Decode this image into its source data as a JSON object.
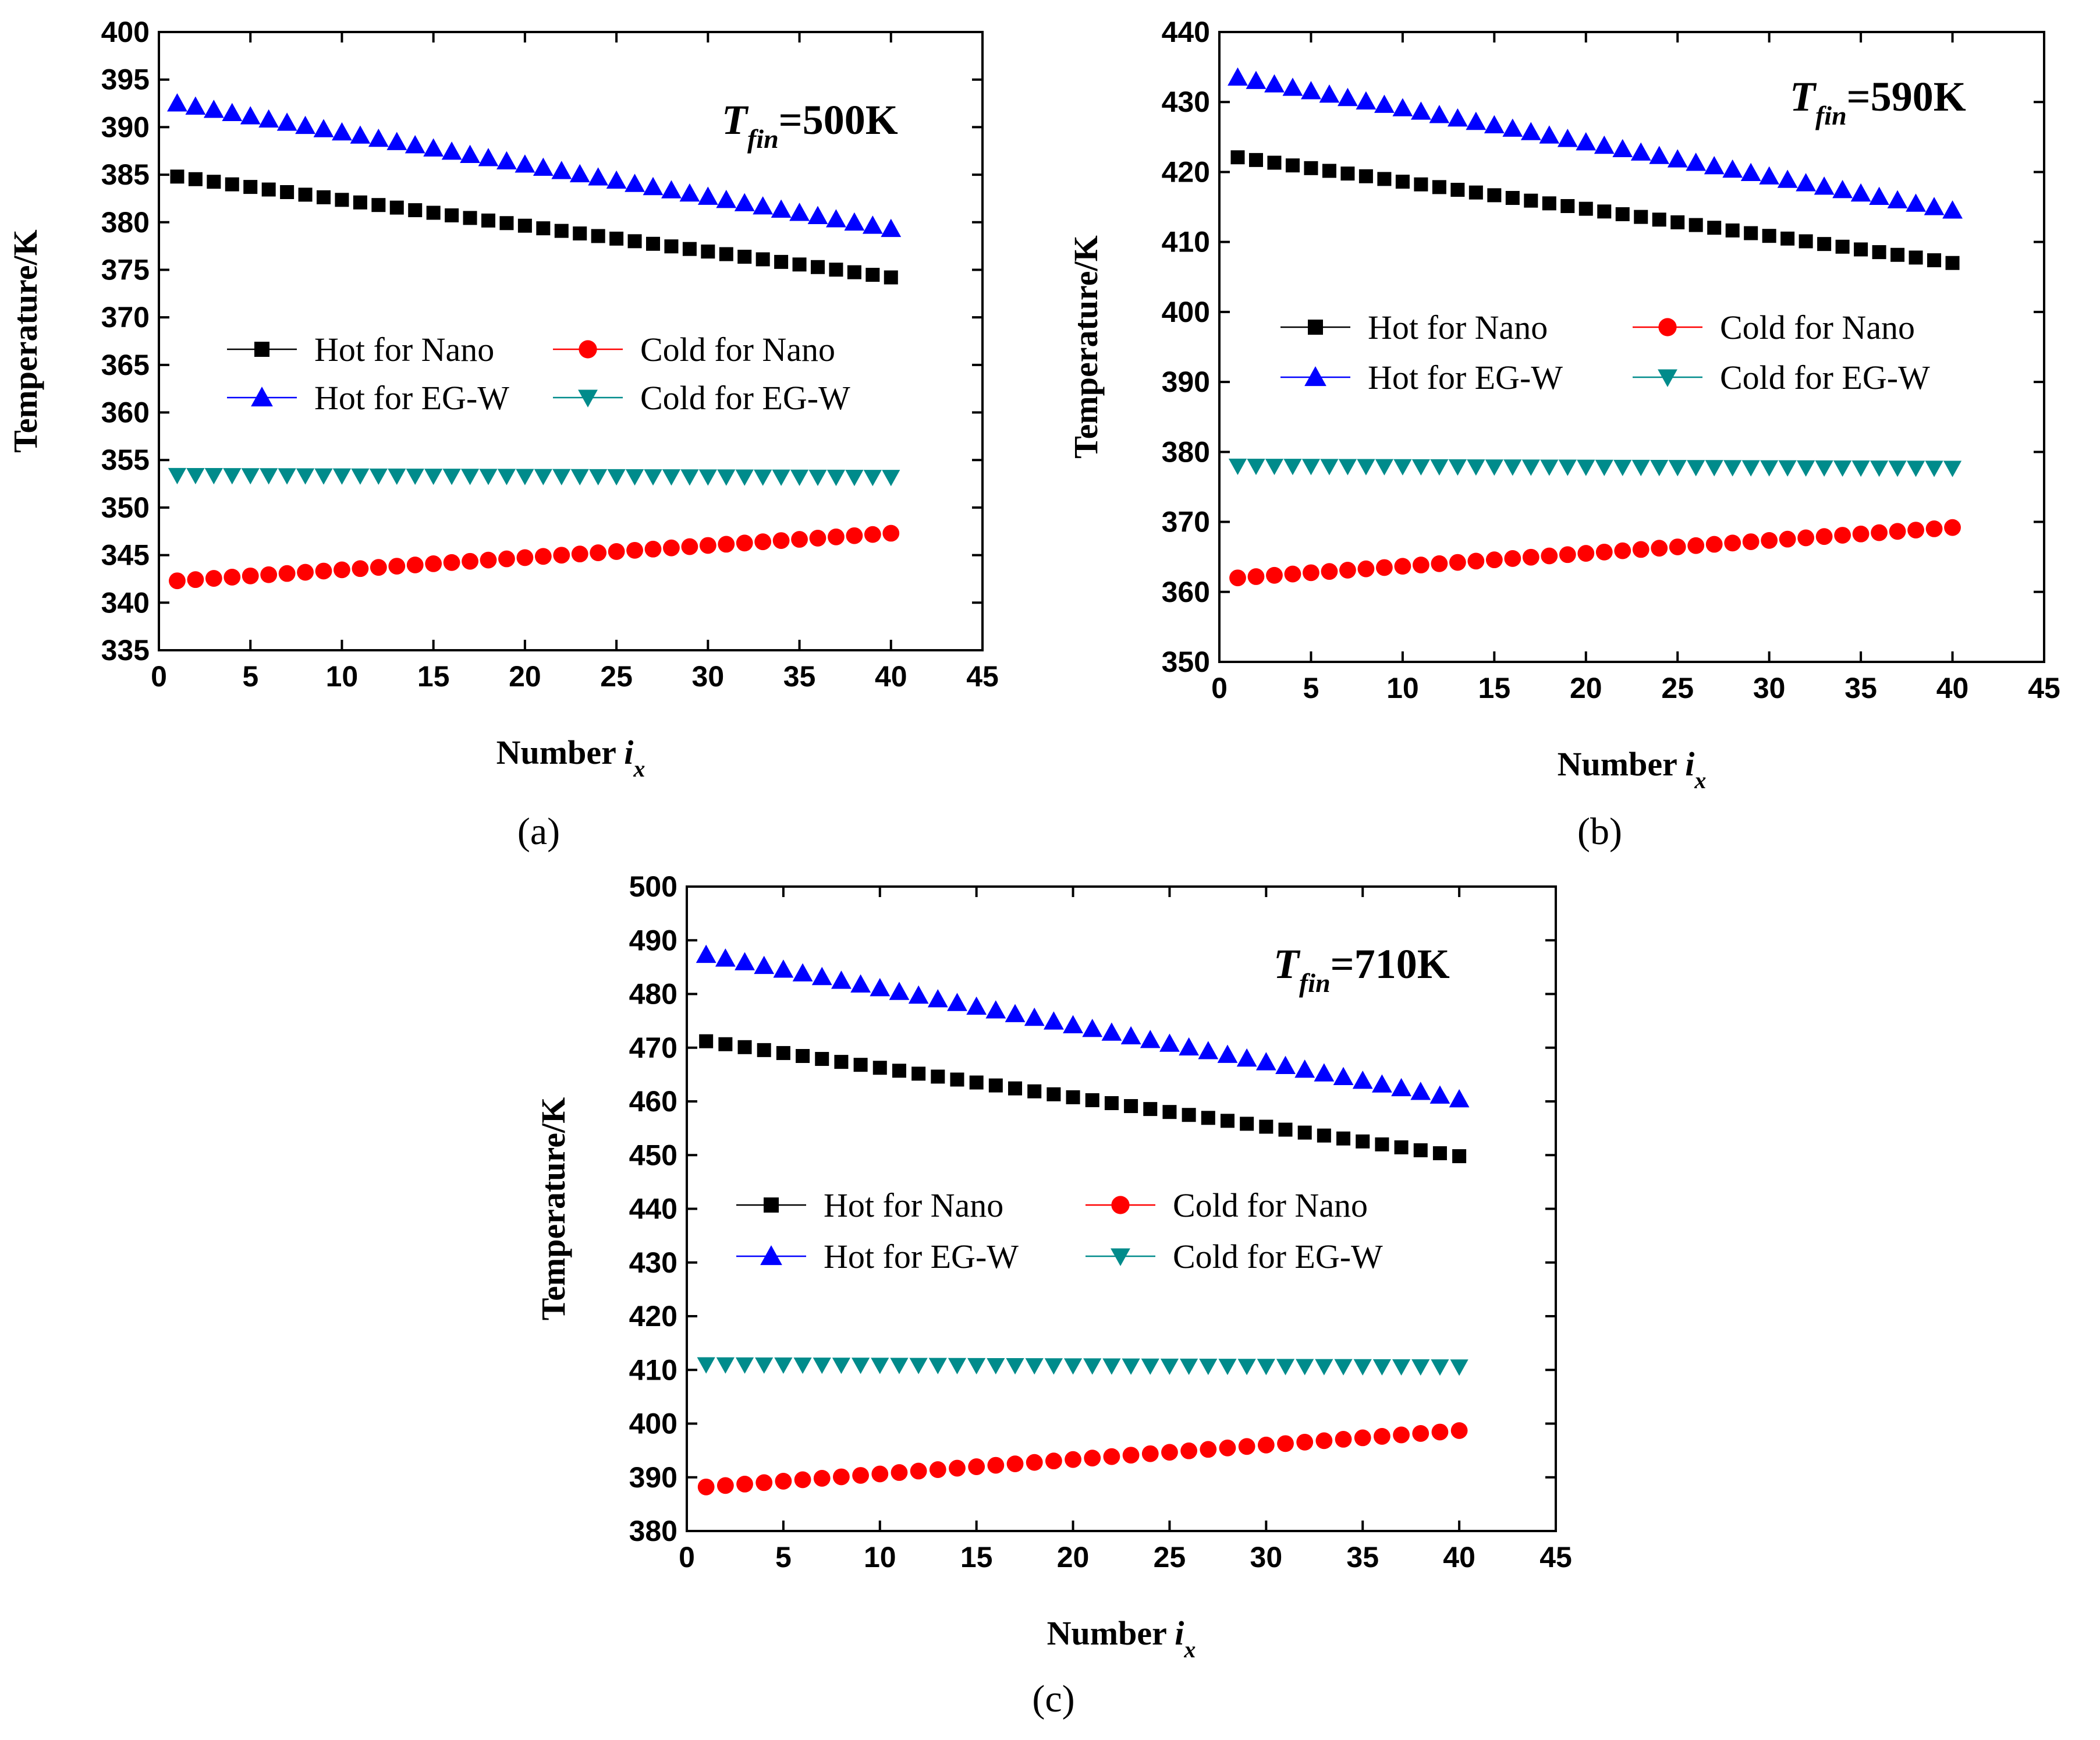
{
  "colors": {
    "hot_nano": "#000000",
    "cold_nano": "#ff0000",
    "hot_egw": "#0000ff",
    "cold_egw": "#008b8b"
  },
  "legend_labels": {
    "hot_nano": "Hot for Nano",
    "cold_nano": "Cold for Nano",
    "hot_egw": "Hot for EG-W",
    "cold_egw": "Cold for EG-W"
  },
  "chart_data": [
    {
      "type": "scatter",
      "caption": "(a)",
      "annotation": {
        "main": "T",
        "sub": "fin",
        "value": "=500K"
      },
      "xlabel": {
        "main": "Number ",
        "var": "i",
        "sub": "x"
      },
      "ylabel": "Temperature/K",
      "xlim": [
        0,
        45
      ],
      "ylim": [
        335,
        400
      ],
      "xticks": [
        0,
        5,
        10,
        15,
        20,
        25,
        30,
        35,
        40,
        45
      ],
      "yticks": [
        335,
        340,
        345,
        350,
        355,
        360,
        365,
        370,
        375,
        380,
        385,
        390,
        395,
        400
      ],
      "x_count": 40,
      "series": [
        {
          "key": "hot_nano",
          "name": "Hot for Nano",
          "marker": "square",
          "start": 384.8,
          "end": 374.2
        },
        {
          "key": "cold_nano",
          "name": "Cold for Nano",
          "marker": "circle",
          "start": 342.3,
          "end": 347.3
        },
        {
          "key": "hot_egw",
          "name": "Hot for EG-W",
          "marker": "triangle-up",
          "start": 392.5,
          "end": 379.3
        },
        {
          "key": "cold_egw",
          "name": "Cold for EG-W",
          "marker": "triangle-down",
          "start": 353.4,
          "end": 353.2
        }
      ]
    },
    {
      "type": "scatter",
      "caption": "(b)",
      "annotation": {
        "main": "T",
        "sub": "fin",
        "value": "=590K"
      },
      "xlabel": {
        "main": "Number ",
        "var": "i",
        "sub": "x"
      },
      "ylabel": "Temperature/K",
      "xlim": [
        0,
        45
      ],
      "ylim": [
        350,
        440
      ],
      "xticks": [
        0,
        5,
        10,
        15,
        20,
        25,
        30,
        35,
        40,
        45
      ],
      "yticks": [
        350,
        360,
        370,
        380,
        390,
        400,
        410,
        420,
        430,
        440
      ],
      "x_count": 40,
      "series": [
        {
          "key": "hot_nano",
          "name": "Hot for Nano",
          "marker": "square",
          "start": 422.1,
          "end": 407.0
        },
        {
          "key": "cold_nano",
          "name": "Cold for Nano",
          "marker": "circle",
          "start": 362.0,
          "end": 369.2
        },
        {
          "key": "hot_egw",
          "name": "Hot for EG-W",
          "marker": "triangle-up",
          "start": 433.5,
          "end": 414.5
        },
        {
          "key": "cold_egw",
          "name": "Cold for EG-W",
          "marker": "triangle-down",
          "start": 378.0,
          "end": 377.7
        }
      ]
    },
    {
      "type": "scatter",
      "caption": "(c)",
      "annotation": {
        "main": "T",
        "sub": "fin",
        "value": "=710K"
      },
      "xlabel": {
        "main": "Number ",
        "var": "i",
        "sub": "x"
      },
      "ylabel": "Temperature/K",
      "xlim": [
        0,
        45
      ],
      "ylim": [
        380,
        500
      ],
      "xticks": [
        0,
        5,
        10,
        15,
        20,
        25,
        30,
        35,
        40,
        45
      ],
      "yticks": [
        380,
        390,
        400,
        410,
        420,
        430,
        440,
        450,
        460,
        470,
        480,
        490,
        500
      ],
      "x_count": 40,
      "series": [
        {
          "key": "hot_nano",
          "name": "Hot for Nano",
          "marker": "square",
          "start": 471.2,
          "end": 449.8
        },
        {
          "key": "cold_nano",
          "name": "Cold for Nano",
          "marker": "circle",
          "start": 388.2,
          "end": 398.7
        },
        {
          "key": "hot_egw",
          "name": "Hot for EG-W",
          "marker": "triangle-up",
          "start": 487.3,
          "end": 460.4
        },
        {
          "key": "cold_egw",
          "name": "Cold for EG-W",
          "marker": "triangle-down",
          "start": 411.0,
          "end": 410.6
        }
      ]
    }
  ]
}
